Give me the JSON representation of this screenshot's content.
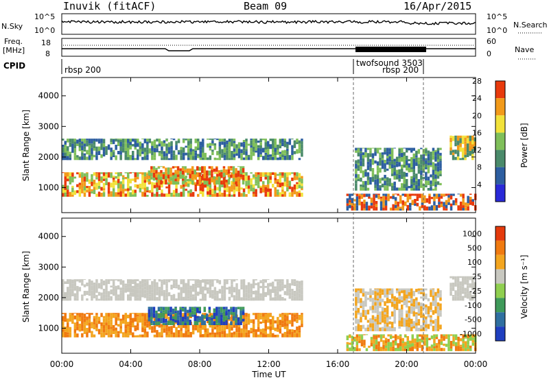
{
  "header": {
    "station": "Inuvik (fitACF)",
    "beam": "Beam 09",
    "date": "16/Apr/2015"
  },
  "top_panels": {
    "nsky_label": "N.Sky",
    "nsearch_label": "N.Search",
    "freq_label": "Freq.",
    "freq_unit": "[MHz]",
    "nave_label": "Nave",
    "cpid_label": "CPID",
    "nsky_ticks": [
      "10^5",
      "10^0"
    ],
    "nsearch_ticks": [
      "10^5",
      "10^0"
    ],
    "freq_ticks": [
      "18",
      "8"
    ],
    "nave_ticks": [
      "60",
      "0"
    ],
    "cpid_marks": [
      {
        "text": "rbsp 200",
        "hour": 0.1
      },
      {
        "text": "twofsound 3503",
        "hour": 16.9
      },
      {
        "text": "rbsp 200",
        "hour": 21.0
      }
    ]
  },
  "chart_data": [
    {
      "type": "heatmap",
      "name": "power",
      "ylabel": "Slant Range [km]",
      "xlabel": "",
      "yticks": [
        1000,
        2000,
        3000,
        4000
      ],
      "ylim": [
        180,
        4600
      ],
      "xlim": [
        0,
        24
      ],
      "colorbar_label": "Power [dB]",
      "colorbar_ticks": [
        "4",
        "8",
        "12",
        "16",
        "20",
        "24",
        "28"
      ],
      "colorbar_colors": [
        "#2a2ad8",
        "#2d5ea0",
        "#4a8a6a",
        "#7fbf5a",
        "#f2e23a",
        "#f29a1a",
        "#e83a0c"
      ]
    },
    {
      "type": "heatmap",
      "name": "velocity",
      "ylabel": "Slant Range [km]",
      "xlabel": "Time UT",
      "yticks": [
        1000,
        2000,
        3000,
        4000
      ],
      "ylim": [
        180,
        4600
      ],
      "xlim": [
        0,
        24
      ],
      "xtick_labels": [
        "00:00",
        "04:00",
        "08:00",
        "12:00",
        "16:00",
        "20:00",
        "00:00"
      ],
      "colorbar_label": "Velocity [m s⁻¹]",
      "colorbar_ticks": [
        "1000",
        "500",
        "100",
        "25",
        "-25",
        "-100",
        "-500",
        "-1000"
      ],
      "colorbar_colors": [
        "#1f3fbf",
        "#2f6fa0",
        "#3f9a5a",
        "#8fcf4f",
        "#c8c8c0",
        "#f3a51f",
        "#f07a10",
        "#e43a0c"
      ]
    }
  ]
}
